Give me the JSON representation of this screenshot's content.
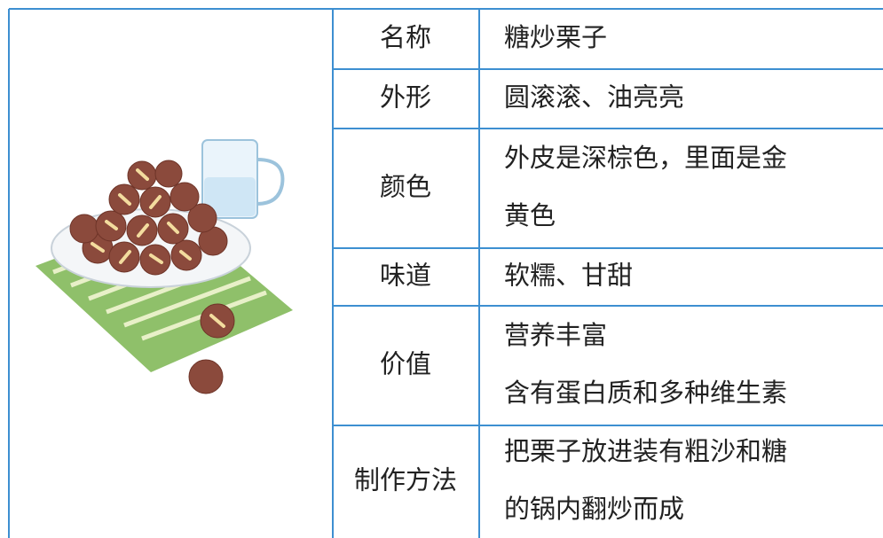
{
  "table": {
    "rows": [
      {
        "label": "名称",
        "lines": [
          "糖炒栗子"
        ]
      },
      {
        "label": "外形",
        "lines": [
          "圆滚滚、油亮亮"
        ]
      },
      {
        "label": "颜色",
        "lines": [
          "外皮是深棕色，里面是金",
          "黄色"
        ]
      },
      {
        "label": "味道",
        "lines": [
          "软糯、甘甜"
        ]
      },
      {
        "label": "价值",
        "lines": [
          "营养丰富",
          "含有蛋白质和多种维生素"
        ]
      },
      {
        "label": "制作方法",
        "lines": [
          "把栗子放进装有粗沙和糖",
          "的锅内翻炒而成"
        ]
      }
    ]
  }
}
